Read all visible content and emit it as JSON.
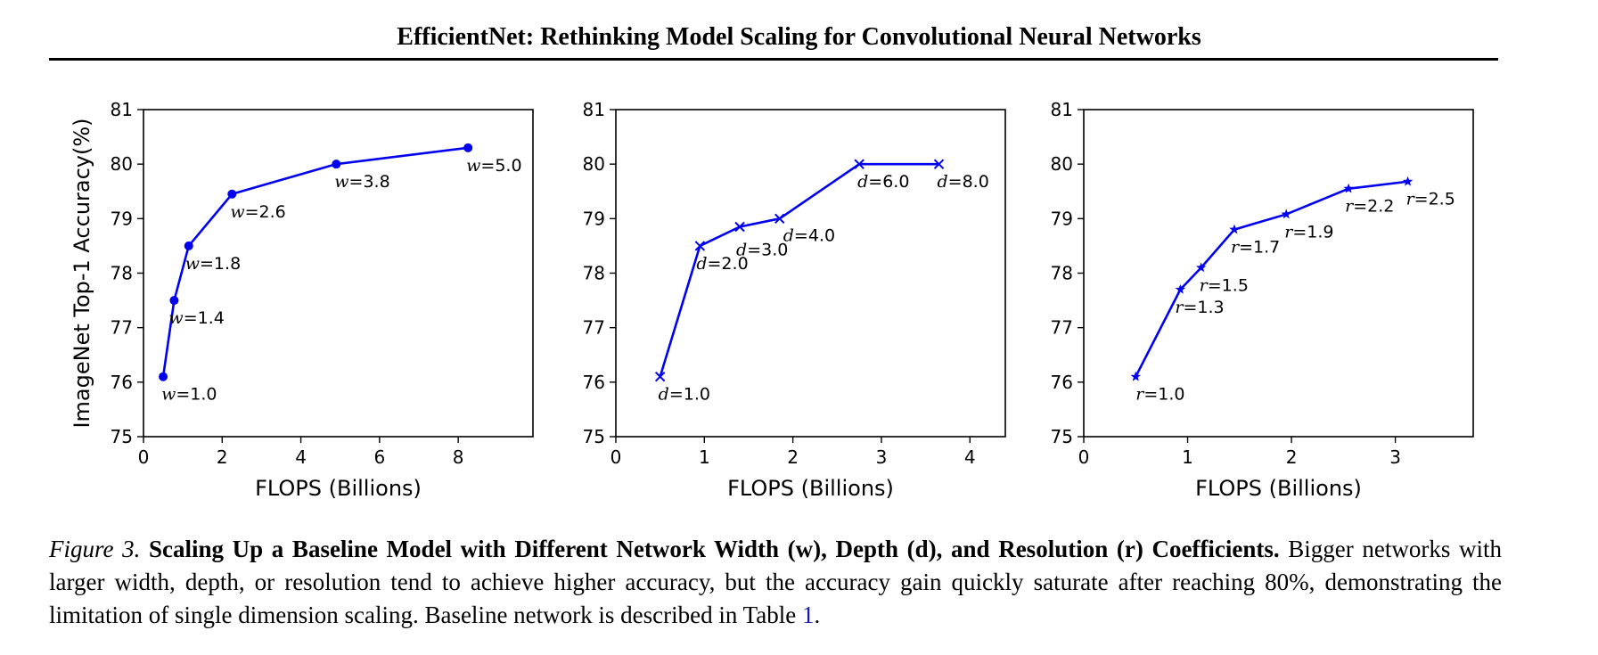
{
  "header": {
    "title": "EfficientNet: Rethinking Model Scaling for Convolutional Neural Networks"
  },
  "caption": {
    "figure_label": "Figure 3.",
    "title": "Scaling Up a Baseline Model with Different Network Width (w), Depth (d), and Resolution (r) Coefficients.",
    "body": "Bigger networks with larger width, depth, or resolution tend to achieve higher accuracy, but the accuracy gain quickly saturate after reaching 80%, demonstrating the limitation of single dimension scaling. Baseline network is described in Table ",
    "table_ref": "1",
    "end": "."
  },
  "colors": {
    "line": "#0000ee"
  },
  "chart_data": [
    {
      "type": "line",
      "marker": "circle",
      "variable": "w",
      "xlabel": "FLOPS (Billions)",
      "ylabel": "ImageNet Top-1 Accuracy(%)",
      "xlim": [
        0,
        9.9
      ],
      "ylim": [
        75,
        81
      ],
      "xticks": [
        0,
        2,
        4,
        6,
        8
      ],
      "yticks": [
        75,
        76,
        77,
        78,
        79,
        80,
        81
      ],
      "x": [
        0.5,
        0.78,
        1.15,
        2.25,
        4.9,
        8.25
      ],
      "y": [
        76.1,
        77.5,
        78.5,
        79.45,
        80.0,
        80.3
      ],
      "labels": [
        "=1.0",
        "=1.4",
        "=1.8",
        "=2.6",
        "=3.8",
        "=5.0"
      ]
    },
    {
      "type": "line",
      "marker": "x",
      "variable": "d",
      "xlabel": "FLOPS (Billions)",
      "ylabel": "",
      "xlim": [
        0,
        4.4
      ],
      "ylim": [
        75,
        81
      ],
      "xticks": [
        0,
        1,
        2,
        3,
        4
      ],
      "yticks": [
        75,
        76,
        77,
        78,
        79,
        80,
        81
      ],
      "x": [
        0.5,
        0.95,
        1.4,
        1.85,
        2.75,
        3.65
      ],
      "y": [
        76.1,
        78.5,
        78.85,
        79.0,
        80.0,
        80.0
      ],
      "labels": [
        "=1.0",
        "=2.0",
        "=3.0",
        "=4.0",
        "=6.0",
        "=8.0"
      ]
    },
    {
      "type": "line",
      "marker": "star",
      "variable": "r",
      "xlabel": "FLOPS (Billions)",
      "ylabel": "",
      "xlim": [
        0,
        3.75
      ],
      "ylim": [
        75,
        81
      ],
      "xticks": [
        0,
        1,
        2,
        3
      ],
      "yticks": [
        75,
        76,
        77,
        78,
        79,
        80,
        81
      ],
      "x": [
        0.5,
        0.93,
        1.13,
        1.45,
        1.95,
        2.55,
        3.12
      ],
      "y": [
        76.1,
        77.7,
        78.1,
        78.8,
        79.08,
        79.55,
        79.68
      ],
      "labels": [
        "=1.0",
        "=1.3",
        "=1.5",
        "=1.7",
        "=1.9",
        "=2.2",
        "=2.5"
      ]
    }
  ]
}
